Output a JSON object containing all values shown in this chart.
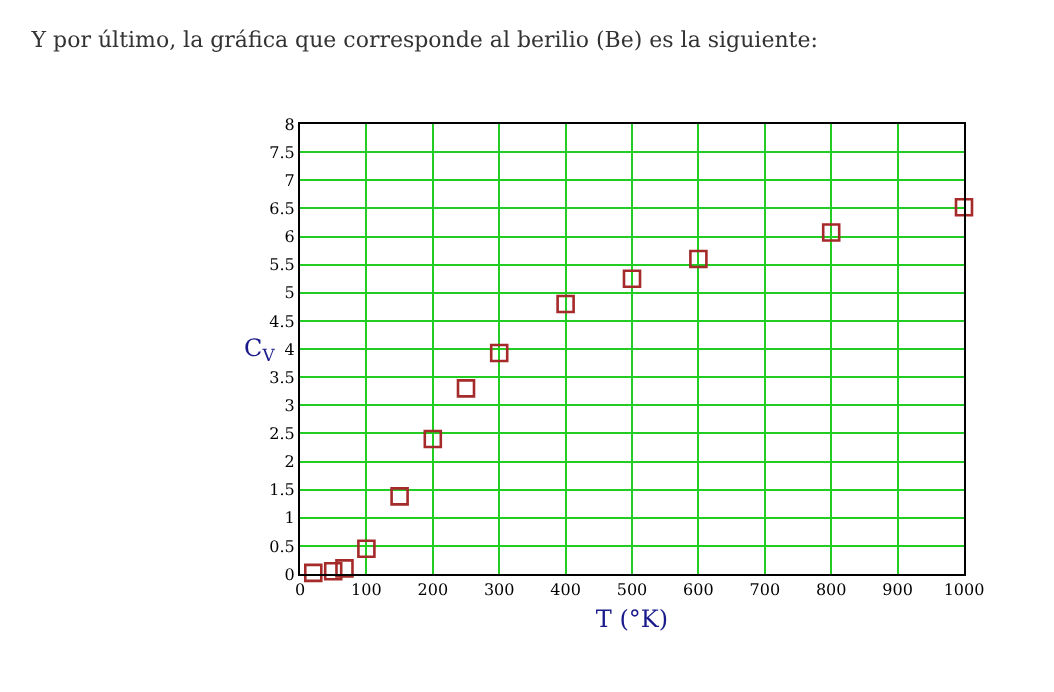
{
  "chart_data": {
    "type": "scatter",
    "title": "Y por último, la gráfica que corresponde al berilio (Be) es la siguiente:",
    "xlabel": "T (°K)",
    "ylabel": "C$_{V}$",
    "x": [
      20,
      50,
      67,
      100,
      150,
      200,
      250,
      300,
      400,
      500,
      600,
      800,
      1000
    ],
    "series": [
      {
        "color": "#a52a2a",
        "values": [
          0.02,
          0.05,
          0.1,
          0.45,
          1.38,
          2.4,
          3.3,
          3.93,
          4.8,
          5.25,
          5.6,
          6.07,
          6.52
        ]
      }
    ],
    "xlim": [
      0,
      1000
    ],
    "xticks": [
      0,
      100,
      200,
      300,
      400,
      500,
      600,
      700,
      800,
      900,
      1000
    ],
    "ylim": [
      0,
      8
    ],
    "yticks": [
      0,
      0.5,
      1,
      1.5,
      2,
      2.5,
      3,
      3.5,
      4,
      4.5,
      5,
      5.5,
      6,
      6.5,
      7,
      7.5,
      8
    ],
    "grid": true,
    "marker": "square"
  }
}
